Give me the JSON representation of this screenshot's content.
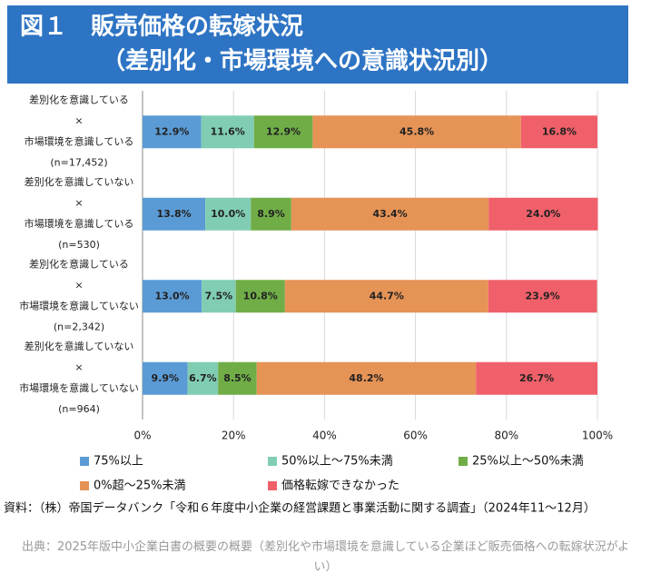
{
  "chart_data": {
    "type": "bar",
    "orientation": "horizontal",
    "stacked": true,
    "title": [
      "図１　販売価格の転嫁状況",
      "（差別化・市場環境への意識状況別）"
    ],
    "categories": [
      [
        "差別化を意識している",
        "×",
        "市場環境を意識している",
        "(n=17,452)"
      ],
      [
        "差別化を意識していない",
        "×",
        "市場環境を意識している",
        "(n=530)"
      ],
      [
        "差別化を意識している",
        "×",
        "市場環境を意識していない",
        "(n=2,342)"
      ],
      [
        "差別化を意識していない",
        "×",
        "市場環境を意識していない",
        "(n=964)"
      ]
    ],
    "series": [
      {
        "name": "75%以上",
        "color": "#5b9bd5",
        "values": [
          12.9,
          13.8,
          13.0,
          9.9
        ],
        "value_labels": [
          "12.9%",
          "13.8%",
          "13.0%",
          "9.9%"
        ]
      },
      {
        "name": "50%以上～75%未満",
        "color": "#80cdb3",
        "values": [
          11.6,
          10.0,
          7.5,
          6.7
        ],
        "value_labels": [
          "11.6%",
          "10.0%",
          "7.5%",
          "6.7%"
        ]
      },
      {
        "name": "25%以上～50%未満",
        "color": "#70ad47",
        "values": [
          12.9,
          8.9,
          10.8,
          8.5
        ],
        "value_labels": [
          "12.9%",
          "8.9%",
          "10.8%",
          "8.5%"
        ]
      },
      {
        "name": "0%超～25%未満",
        "color": "#e69356",
        "values": [
          45.8,
          43.4,
          44.7,
          48.2
        ],
        "value_labels": [
          "45.8%",
          "43.4%",
          "44.7%",
          "48.2%"
        ]
      },
      {
        "name": "価格転嫁できなかった",
        "color": "#f0606a",
        "values": [
          16.8,
          24.0,
          23.9,
          26.7
        ],
        "value_labels": [
          "16.8%",
          "24.0%",
          "23.9%",
          "26.7%"
        ]
      }
    ],
    "xlim": [
      0,
      100
    ],
    "xticks": [
      {
        "value": 0,
        "label": "0%"
      },
      {
        "value": 20,
        "label": "20%"
      },
      {
        "value": 40,
        "label": "40%"
      },
      {
        "value": 60,
        "label": "60%"
      },
      {
        "value": 80,
        "label": "80%"
      },
      {
        "value": 100,
        "label": "100%"
      }
    ],
    "grid": true,
    "source": "資料：（株）帝国データバンク「令和６年度中小企業の経営課題と事業活動に関する調査」（2024年11～12月）",
    "caption": "出典：2025年版中小企業白書の概要の概要（差別化や市場環境を意識している企業ほど販売価格への転嫁状況がよい）"
  }
}
